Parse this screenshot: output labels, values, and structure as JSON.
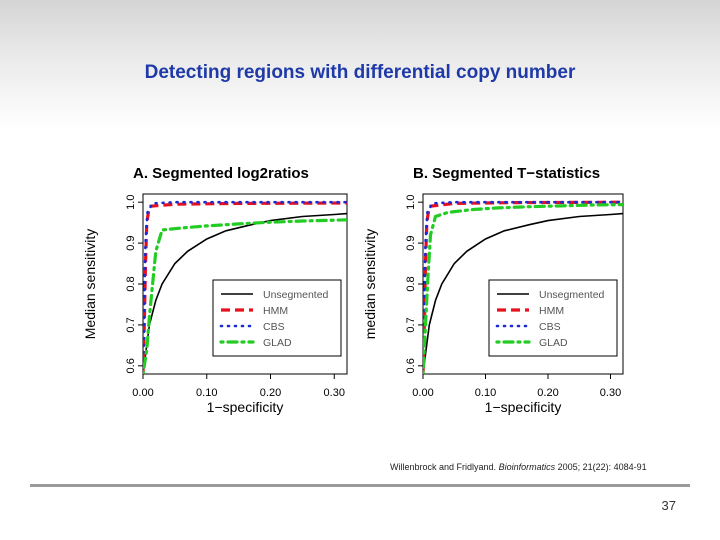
{
  "slide": {
    "title": "Detecting regions with differential copy number",
    "citation": {
      "authors": "Willenbrock and Fridlyand.",
      "journal": "Bioinformatics",
      "details": "2005; 21(22): 4084-91"
    },
    "page_number": "37"
  },
  "chart_data": [
    {
      "type": "line",
      "title": "A. Segmented log2ratios",
      "xlabel": "1−specificity",
      "ylabel": "Median sensitivity",
      "xlim": [
        0,
        0.32
      ],
      "ylim": [
        0.58,
        1.02
      ],
      "xticks": [
        "0.00",
        "0.10",
        "0.20",
        "0.30"
      ],
      "yticks": [
        "0.6",
        "0.7",
        "0.8",
        "0.9",
        "1.0"
      ],
      "legend": {
        "position": "bottom-right",
        "entries": [
          "Unsegmented",
          "HMM",
          "CBS",
          "GLAD"
        ]
      },
      "series": [
        {
          "name": "Unsegmented",
          "color": "#000000",
          "style": "solid",
          "x": [
            0.0,
            0.005,
            0.01,
            0.02,
            0.03,
            0.05,
            0.07,
            0.1,
            0.13,
            0.17,
            0.2,
            0.25,
            0.3,
            0.32
          ],
          "y": [
            0.58,
            0.64,
            0.7,
            0.76,
            0.8,
            0.85,
            0.88,
            0.91,
            0.93,
            0.945,
            0.955,
            0.965,
            0.97,
            0.972
          ]
        },
        {
          "name": "HMM",
          "color": "#e8101c",
          "style": "dashed",
          "x": [
            0.0,
            0.002,
            0.004,
            0.006,
            0.01,
            0.05,
            0.15,
            0.32
          ],
          "y": [
            0.58,
            0.7,
            0.85,
            0.95,
            0.99,
            0.995,
            0.997,
            0.998
          ]
        },
        {
          "name": "CBS",
          "color": "#1a2ad4",
          "style": "dotted",
          "x": [
            0.0,
            0.002,
            0.004,
            0.007,
            0.015,
            0.05,
            0.32
          ],
          "y": [
            0.58,
            0.75,
            0.9,
            0.975,
            0.997,
            1.0,
            1.0
          ]
        },
        {
          "name": "GLAD",
          "color": "#22cc22",
          "style": "dotdash",
          "x": [
            0.0,
            0.006,
            0.01,
            0.015,
            0.02,
            0.03,
            0.06,
            0.1,
            0.15,
            0.2,
            0.25,
            0.3,
            0.32
          ],
          "y": [
            0.58,
            0.64,
            0.72,
            0.8,
            0.88,
            0.932,
            0.937,
            0.942,
            0.947,
            0.951,
            0.954,
            0.956,
            0.957
          ]
        }
      ]
    },
    {
      "type": "line",
      "title": "B. Segmented T−statistics",
      "xlabel": "1−specificity",
      "ylabel": "median sensitivity",
      "xlim": [
        0,
        0.32
      ],
      "ylim": [
        0.58,
        1.02
      ],
      "xticks": [
        "0.00",
        "0.10",
        "0.20",
        "0.30"
      ],
      "yticks": [
        "0.6",
        "0.7",
        "0.8",
        "0.9",
        "1.0"
      ],
      "legend": {
        "position": "bottom-right",
        "entries": [
          "Unsegmented",
          "HMM",
          "CBS",
          "GLAD"
        ]
      },
      "series": [
        {
          "name": "Unsegmented",
          "color": "#000000",
          "style": "solid",
          "x": [
            0.0,
            0.005,
            0.01,
            0.02,
            0.03,
            0.05,
            0.07,
            0.1,
            0.13,
            0.17,
            0.2,
            0.25,
            0.3,
            0.32
          ],
          "y": [
            0.58,
            0.64,
            0.7,
            0.76,
            0.8,
            0.85,
            0.88,
            0.91,
            0.93,
            0.945,
            0.955,
            0.965,
            0.97,
            0.972
          ]
        },
        {
          "name": "HMM",
          "color": "#e8101c",
          "style": "dashed",
          "x": [
            0.0,
            0.002,
            0.004,
            0.006,
            0.01,
            0.05,
            0.15,
            0.32
          ],
          "y": [
            0.58,
            0.7,
            0.85,
            0.95,
            0.99,
            0.997,
            0.999,
            1.0
          ]
        },
        {
          "name": "CBS",
          "color": "#1a2ad4",
          "style": "dotted",
          "x": [
            0.0,
            0.002,
            0.004,
            0.007,
            0.015,
            0.05,
            0.32
          ],
          "y": [
            0.58,
            0.75,
            0.9,
            0.975,
            0.997,
            1.0,
            1.0
          ]
        },
        {
          "name": "GLAD",
          "color": "#22cc22",
          "style": "dotdash",
          "x": [
            0.0,
            0.004,
            0.008,
            0.012,
            0.02,
            0.04,
            0.08,
            0.12,
            0.17,
            0.22,
            0.27,
            0.32
          ],
          "y": [
            0.58,
            0.7,
            0.82,
            0.92,
            0.965,
            0.975,
            0.982,
            0.986,
            0.989,
            0.991,
            0.993,
            0.994
          ]
        }
      ]
    }
  ]
}
